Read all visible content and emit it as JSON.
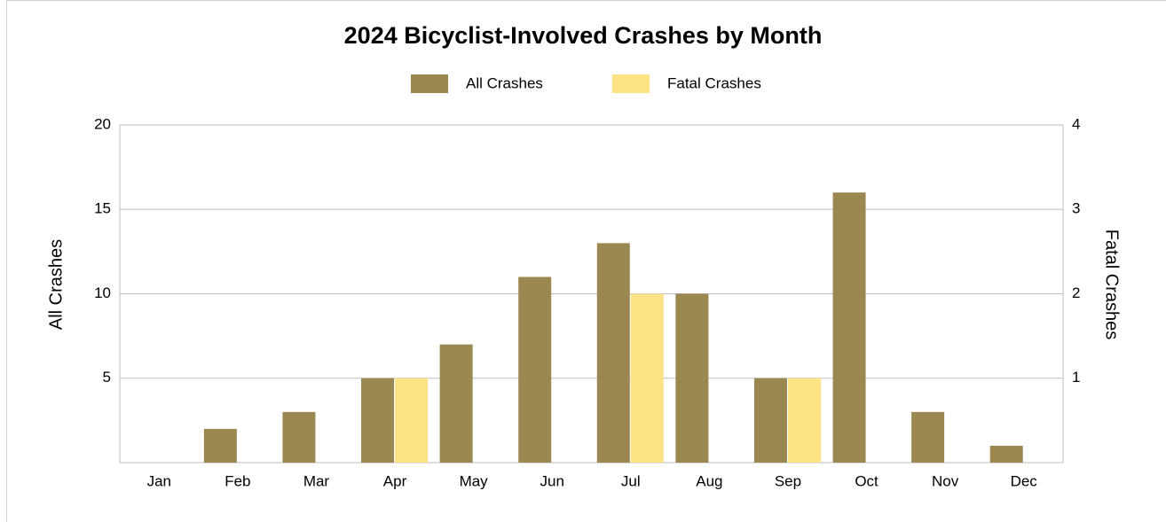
{
  "chart_data": {
    "type": "bar",
    "title": "2024 Bicyclist-Involved Crashes by Month",
    "categories": [
      "Jan",
      "Feb",
      "Mar",
      "Apr",
      "May",
      "Jun",
      "Jul",
      "Aug",
      "Sep",
      "Oct",
      "Nov",
      "Dec"
    ],
    "series": [
      {
        "name": "All Crashes",
        "color": "#9a8850",
        "values": [
          0,
          2,
          3,
          5,
          7,
          11,
          13,
          10,
          5,
          16,
          3,
          1
        ]
      },
      {
        "name": "Fatal Crashes",
        "color": "#fde385",
        "axis": "y2",
        "values": [
          0,
          0,
          0,
          1,
          0,
          0,
          2,
          0,
          1,
          0,
          0,
          0
        ]
      }
    ],
    "ylabel": "All Crashes",
    "y2label": "Fatal Crashes",
    "ylim": [
      0,
      20
    ],
    "yticks": [
      5,
      10,
      15,
      20
    ],
    "y2lim": [
      0,
      4
    ],
    "y2ticks": [
      1,
      2,
      3,
      4
    ],
    "grid": true,
    "legend": "top"
  }
}
